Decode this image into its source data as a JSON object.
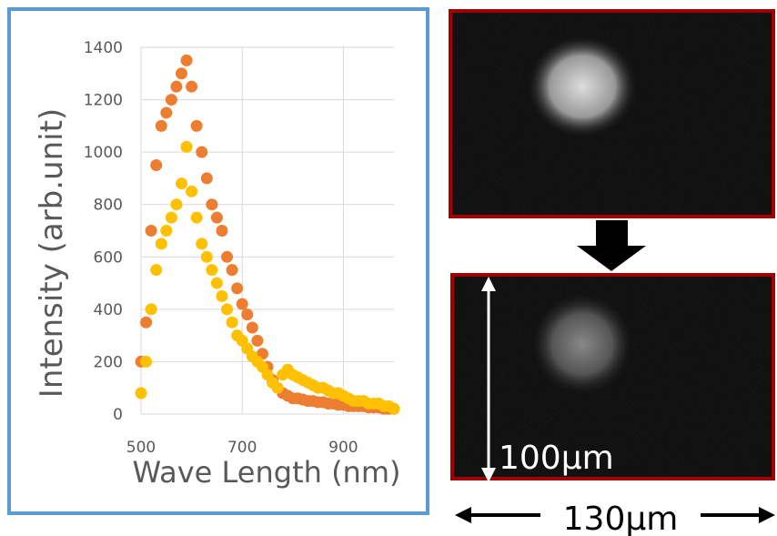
{
  "chart_data": {
    "type": "scatter",
    "y_label": "Intensity (arb.unit)",
    "x_label": "Wave Length (nm)",
    "xlim": [
      500,
      1000
    ],
    "xticks": [
      500,
      700,
      900
    ],
    "ylim": [
      0,
      1400
    ],
    "yticks": [
      0,
      200,
      400,
      600,
      800,
      1000,
      1200,
      1400
    ],
    "grid": true,
    "x": [
      500,
      510,
      520,
      530,
      540,
      550,
      560,
      570,
      580,
      590,
      600,
      610,
      620,
      630,
      640,
      650,
      660,
      670,
      680,
      690,
      700,
      710,
      720,
      730,
      740,
      750,
      760,
      770,
      780,
      790,
      800,
      810,
      820,
      830,
      840,
      850,
      860,
      870,
      880,
      890,
      900,
      910,
      920,
      930,
      940,
      950,
      960,
      970,
      980,
      990,
      1000
    ],
    "series": [
      {
        "color": "#ED7D31",
        "values": [
          200,
          350,
          700,
          950,
          1100,
          1150,
          1200,
          1250,
          1300,
          1350,
          1250,
          1100,
          1000,
          900,
          800,
          750,
          700,
          600,
          550,
          480,
          420,
          380,
          330,
          280,
          230,
          180,
          130,
          100,
          80,
          70,
          60,
          60,
          55,
          50,
          50,
          45,
          45,
          40,
          40,
          35,
          35,
          30,
          30,
          30,
          30,
          25,
          25,
          25,
          20,
          20,
          20
        ]
      },
      {
        "color": "#FFC000",
        "values": [
          80,
          200,
          400,
          550,
          650,
          700,
          750,
          800,
          880,
          1020,
          850,
          750,
          650,
          600,
          550,
          500,
          450,
          400,
          350,
          300,
          280,
          250,
          220,
          200,
          180,
          150,
          120,
          100,
          150,
          170,
          150,
          140,
          130,
          120,
          110,
          100,
          100,
          90,
          80,
          80,
          70,
          60,
          50,
          50,
          50,
          40,
          40,
          40,
          30,
          30,
          20
        ]
      }
    ],
    "annotations": [
      "100μm",
      "130μm"
    ]
  }
}
